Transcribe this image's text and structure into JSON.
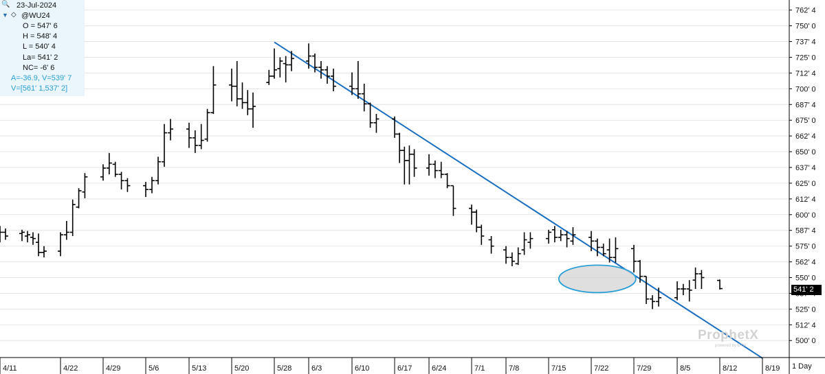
{
  "info": {
    "date": "23-Jul-2024",
    "symbol": "@WU24",
    "open": "O = 547' 6",
    "high": "H = 548' 4",
    "low": "L = 540' 4",
    "last": "La= 541' 2",
    "net_change": "NC= -6' 6",
    "trendline_angle_value": "A=-36.9, V=539' 7",
    "trendline_range": "V=[561' 1,537' 2]"
  },
  "colors": {
    "trendline": "#1a6fc1",
    "ellipse_stroke": "#2a9fd6",
    "ellipse_fill": "#d4d4d4",
    "bars": "#000000",
    "info_accent": "#2a9fd6",
    "grid": "#e4e4e4"
  },
  "icons": {
    "search": "search-icon",
    "collapse": "triangle-down-icon",
    "symbol_marker": "diamond-icon"
  },
  "price_tag": "541' 2",
  "period_label": "1 Day",
  "watermark": {
    "brand": "ProphetX",
    "sub": "powered by DTN"
  },
  "chart_data": {
    "type": "ohlc",
    "symbol": "@WU24",
    "y_tick_labels": [
      "762' 4",
      "750' 0",
      "737' 4",
      "725' 0",
      "712' 4",
      "700' 0",
      "687' 4",
      "675' 0",
      "662' 4",
      "650' 0",
      "637' 4",
      "625' 0",
      "612' 4",
      "600' 0",
      "587' 4",
      "575' 0",
      "562' 4",
      "550' 0",
      "537' 4",
      "525' 0",
      "512' 4",
      "500' 0"
    ],
    "y_ticks": [
      762.5,
      750,
      737.5,
      725,
      712.5,
      700,
      687.5,
      675,
      662.5,
      650,
      637.5,
      625,
      612.5,
      600,
      587.5,
      575,
      562.5,
      550,
      537.5,
      525,
      512.5,
      500
    ],
    "ylim": [
      486.5,
      770.5
    ],
    "x_tick_labels": [
      "4/11",
      "4/22",
      "4/29",
      "5/6",
      "5/13",
      "5/20",
      "5/28",
      "6/3",
      "6/10",
      "6/17",
      "6/24",
      "7/1",
      "7/8",
      "7/15",
      "7/22",
      "7/29",
      "8/5",
      "8/12",
      "8/19"
    ],
    "x_ticks": [
      "2024-04-11",
      "2024-04-22",
      "2024-04-29",
      "2024-05-06",
      "2024-05-13",
      "2024-05-20",
      "2024-05-28",
      "2024-06-03",
      "2024-06-10",
      "2024-06-17",
      "2024-06-24",
      "2024-07-01",
      "2024-07-08",
      "2024-07-15",
      "2024-07-22",
      "2024-07-29",
      "2024-08-05",
      "2024-08-12",
      "2024-08-19"
    ],
    "bars": [
      {
        "date": "2024-04-11",
        "open": 583,
        "high": 591,
        "low": 578,
        "close": 586
      },
      {
        "date": "2024-04-12",
        "open": 586,
        "high": 589,
        "low": 580,
        "close": 583
      },
      {
        "date": "2024-04-15",
        "open": 585,
        "high": 588,
        "low": 579,
        "close": 586
      },
      {
        "date": "2024-04-16",
        "open": 583,
        "high": 587,
        "low": 578,
        "close": 584
      },
      {
        "date": "2024-04-17",
        "open": 582,
        "high": 586,
        "low": 576,
        "close": 581
      },
      {
        "date": "2024-04-18",
        "open": 578,
        "high": 585,
        "low": 567,
        "close": 570
      },
      {
        "date": "2024-04-19",
        "open": 570,
        "high": 575,
        "low": 566,
        "close": 571
      },
      {
        "date": "2024-04-22",
        "open": 571,
        "high": 586,
        "low": 567,
        "close": 584
      },
      {
        "date": "2024-04-23",
        "open": 584,
        "high": 595,
        "low": 580,
        "close": 586
      },
      {
        "date": "2024-04-24",
        "open": 586,
        "high": 612,
        "low": 583,
        "close": 608
      },
      {
        "date": "2024-04-25",
        "open": 606,
        "high": 621,
        "low": 605,
        "close": 619
      },
      {
        "date": "2024-04-26",
        "open": 618,
        "high": 633,
        "low": 613,
        "close": 630
      },
      {
        "date": "2024-04-29",
        "open": 630,
        "high": 640,
        "low": 627,
        "close": 637
      },
      {
        "date": "2024-04-30",
        "open": 637,
        "high": 649,
        "low": 632,
        "close": 641
      },
      {
        "date": "2024-05-01",
        "open": 640,
        "high": 642,
        "low": 630,
        "close": 632
      },
      {
        "date": "2024-05-02",
        "open": 632,
        "high": 634,
        "low": 620,
        "close": 627
      },
      {
        "date": "2024-05-03",
        "open": 627,
        "high": 629,
        "low": 618,
        "close": 623
      },
      {
        "date": "2024-05-06",
        "open": 623,
        "high": 626,
        "low": 614,
        "close": 620
      },
      {
        "date": "2024-05-07",
        "open": 620,
        "high": 630,
        "low": 617,
        "close": 627
      },
      {
        "date": "2024-05-08",
        "open": 627,
        "high": 646,
        "low": 624,
        "close": 642
      },
      {
        "date": "2024-05-09",
        "open": 642,
        "high": 672,
        "low": 638,
        "close": 665
      },
      {
        "date": "2024-05-10",
        "open": 665,
        "high": 676,
        "low": 659,
        "close": 668
      },
      {
        "date": "2024-05-13",
        "open": 668,
        "high": 673,
        "low": 653,
        "close": 661
      },
      {
        "date": "2024-05-14",
        "open": 661,
        "high": 667,
        "low": 649,
        "close": 655
      },
      {
        "date": "2024-05-15",
        "open": 655,
        "high": 672,
        "low": 652,
        "close": 659
      },
      {
        "date": "2024-05-16",
        "open": 660,
        "high": 684,
        "low": 658,
        "close": 681
      },
      {
        "date": "2024-05-17",
        "open": 681,
        "high": 718,
        "low": 680,
        "close": 703
      },
      {
        "date": "2024-05-20",
        "open": 703,
        "high": 716,
        "low": 690,
        "close": 702
      },
      {
        "date": "2024-05-21",
        "open": 702,
        "high": 722,
        "low": 686,
        "close": 692
      },
      {
        "date": "2024-05-22",
        "open": 692,
        "high": 705,
        "low": 684,
        "close": 689
      },
      {
        "date": "2024-05-23",
        "open": 689,
        "high": 699,
        "low": 679,
        "close": 684
      },
      {
        "date": "2024-05-24",
        "open": 684,
        "high": 697,
        "low": 669,
        "close": 686
      },
      {
        "date": "2024-05-27",
        "open": 705,
        "high": 715,
        "low": 703,
        "close": 710
      },
      {
        "date": "2024-05-28",
        "open": 710,
        "high": 732,
        "low": 708,
        "close": 715
      },
      {
        "date": "2024-05-29",
        "open": 716,
        "high": 725,
        "low": 709,
        "close": 722
      },
      {
        "date": "2024-05-30",
        "open": 720,
        "high": 726,
        "low": 705,
        "close": 719
      },
      {
        "date": "2024-05-31",
        "open": 719,
        "high": 730,
        "low": 714,
        "close": 724
      },
      {
        "date": "2024-06-03",
        "open": 722,
        "high": 736,
        "low": 716,
        "close": 726
      },
      {
        "date": "2024-06-04",
        "open": 726,
        "high": 728,
        "low": 713,
        "close": 717
      },
      {
        "date": "2024-06-05",
        "open": 717,
        "high": 722,
        "low": 708,
        "close": 715
      },
      {
        "date": "2024-06-06",
        "open": 715,
        "high": 718,
        "low": 704,
        "close": 710
      },
      {
        "date": "2024-06-07",
        "open": 710,
        "high": 716,
        "low": 698,
        "close": 702
      },
      {
        "date": "2024-06-10",
        "open": 702,
        "high": 713,
        "low": 695,
        "close": 700
      },
      {
        "date": "2024-06-11",
        "open": 700,
        "high": 722,
        "low": 692,
        "close": 696
      },
      {
        "date": "2024-06-12",
        "open": 696,
        "high": 704,
        "low": 682,
        "close": 688
      },
      {
        "date": "2024-06-13",
        "open": 688,
        "high": 689,
        "low": 669,
        "close": 673
      },
      {
        "date": "2024-06-14",
        "open": 673,
        "high": 680,
        "low": 665,
        "close": 676
      },
      {
        "date": "2024-06-17",
        "open": 676,
        "high": 678,
        "low": 661,
        "close": 664
      },
      {
        "date": "2024-06-18",
        "open": 664,
        "high": 665,
        "low": 641,
        "close": 651
      },
      {
        "date": "2024-06-19",
        "open": 651,
        "high": 654,
        "low": 624,
        "close": 643
      },
      {
        "date": "2024-06-20",
        "open": 643,
        "high": 655,
        "low": 624,
        "close": 648
      },
      {
        "date": "2024-06-21",
        "open": 648,
        "high": 652,
        "low": 630,
        "close": 637
      },
      {
        "date": "2024-06-24",
        "open": 637,
        "high": 648,
        "low": 631,
        "close": 640
      },
      {
        "date": "2024-06-25",
        "open": 640,
        "high": 643,
        "low": 629,
        "close": 635
      },
      {
        "date": "2024-06-26",
        "open": 635,
        "high": 642,
        "low": 629,
        "close": 632
      },
      {
        "date": "2024-06-27",
        "open": 632,
        "high": 633,
        "low": 621,
        "close": 623
      },
      {
        "date": "2024-06-28",
        "open": 623,
        "high": 623,
        "low": 599,
        "close": 605
      },
      {
        "date": "2024-07-01",
        "open": 605,
        "high": 608,
        "low": 592,
        "close": 602
      },
      {
        "date": "2024-07-02",
        "open": 602,
        "high": 604,
        "low": 586,
        "close": 590
      },
      {
        "date": "2024-07-03",
        "open": 590,
        "high": 592,
        "low": 576,
        "close": 583
      },
      {
        "date": "2024-07-05",
        "open": 580,
        "high": 583,
        "low": 569,
        "close": 575
      },
      {
        "date": "2024-07-08",
        "open": 572,
        "high": 575,
        "low": 561,
        "close": 566
      },
      {
        "date": "2024-07-09",
        "open": 566,
        "high": 570,
        "low": 559,
        "close": 563
      },
      {
        "date": "2024-07-10",
        "open": 561,
        "high": 574,
        "low": 560,
        "close": 569
      },
      {
        "date": "2024-07-11",
        "open": 572,
        "high": 586,
        "low": 568,
        "close": 580
      },
      {
        "date": "2024-07-12",
        "open": 578,
        "high": 586,
        "low": 573,
        "close": 581
      },
      {
        "date": "2024-07-15",
        "open": 581,
        "high": 588,
        "low": 577,
        "close": 586
      },
      {
        "date": "2024-07-16",
        "open": 588,
        "high": 591,
        "low": 578,
        "close": 582
      },
      {
        "date": "2024-07-17",
        "open": 582,
        "high": 588,
        "low": 579,
        "close": 584
      },
      {
        "date": "2024-07-18",
        "open": 584,
        "high": 587,
        "low": 574,
        "close": 581
      },
      {
        "date": "2024-07-19",
        "open": 579,
        "high": 590,
        "low": 576,
        "close": 584
      },
      {
        "date": "2024-07-22",
        "open": 582,
        "high": 587,
        "low": 571,
        "close": 579
      },
      {
        "date": "2024-07-23",
        "open": 579,
        "high": 581,
        "low": 567,
        "close": 574
      },
      {
        "date": "2024-07-24",
        "open": 574,
        "high": 577,
        "low": 567,
        "close": 569
      },
      {
        "date": "2024-07-25",
        "open": 572,
        "high": 581,
        "low": 562,
        "close": 566
      },
      {
        "date": "2024-07-26",
        "open": 566,
        "high": 582,
        "low": 562,
        "close": 573
      },
      {
        "date": "2024-07-29",
        "open": 573,
        "high": 576,
        "low": 554,
        "close": 563
      },
      {
        "date": "2024-07-30",
        "open": 563,
        "high": 564,
        "low": 546,
        "close": 551
      },
      {
        "date": "2024-07-31",
        "open": 551,
        "high": 551,
        "low": 529,
        "close": 533
      },
      {
        "date": "2024-08-01",
        "open": 533,
        "high": 536,
        "low": 525,
        "close": 531
      },
      {
        "date": "2024-08-02",
        "open": 531,
        "high": 542,
        "low": 527,
        "close": 534
      },
      {
        "date": "2024-08-05",
        "open": 534,
        "high": 547,
        "low": 532,
        "close": 541
      },
      {
        "date": "2024-08-06",
        "open": 541,
        "high": 545,
        "low": 536,
        "close": 541
      },
      {
        "date": "2024-08-07",
        "open": 541,
        "high": 548,
        "low": 531,
        "close": 540
      },
      {
        "date": "2024-08-08",
        "open": 548,
        "high": 558,
        "low": 541,
        "close": 553
      },
      {
        "date": "2024-08-09",
        "open": 553,
        "high": 556,
        "low": 541,
        "close": 550
      },
      {
        "date": "2024-08-12",
        "open": 547.75,
        "high": 548.5,
        "low": 540.5,
        "close": 541.25
      }
    ],
    "trendline": {
      "start": {
        "date": "2024-05-28",
        "price": 737
      },
      "end": {
        "date": "2024-08-19",
        "price": 486
      }
    },
    "highlight_ellipse": {
      "center": {
        "date": "2024-07-23",
        "price": 549
      },
      "label": ""
    },
    "last_price_label": "541' 2",
    "grid": true,
    "legend": "none"
  }
}
